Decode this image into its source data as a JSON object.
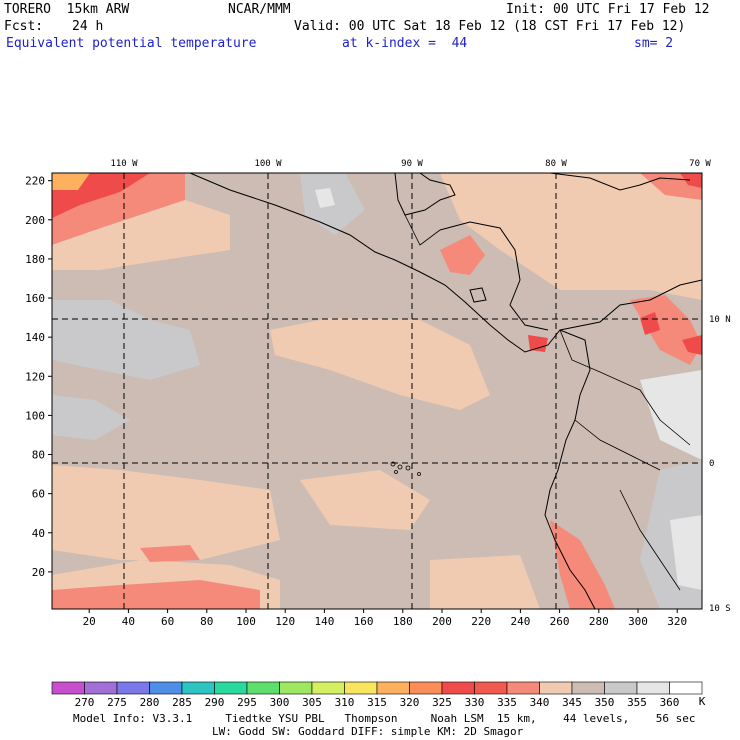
{
  "header": {
    "model": "TORERO  15km ARW",
    "center": "NCAR/MMM",
    "init": "Init: 00 UTC Fri 17 Feb 12",
    "fcst_label": "Fcst:",
    "fcst_value": "24 h",
    "valid": "Valid: 00 UTC Sat 18 Feb 12 (18 CST Fri 17 Feb 12)",
    "field": "Equivalent potential temperature",
    "level": "at k-index =  44",
    "smoothing": "sm= 2"
  },
  "map": {
    "x_ticks": [
      "20",
      "40",
      "60",
      "80",
      "100",
      "120",
      "140",
      "160",
      "180",
      "200",
      "220",
      "240",
      "260",
      "280",
      "300",
      "320"
    ],
    "y_ticks": [
      "20",
      "40",
      "60",
      "80",
      "100",
      "120",
      "140",
      "160",
      "180",
      "200",
      "220"
    ],
    "lon_labels": [
      "110 W",
      "100 W",
      "90 W",
      "80 W",
      "70 W"
    ],
    "lat_labels": [
      "10 N",
      "0",
      "10 S"
    ],
    "colors": {
      "c330": "#f04b4b",
      "c335": "#f58a7a",
      "c340": "#f0cbb2",
      "c345": "#ccbcb4",
      "c350": "#c9c9cc",
      "c355": "#e6e6e6",
      "c325": "#fb8d59",
      "c320": "#fdb15f"
    }
  },
  "colorbar": {
    "labels": [
      "270",
      "275",
      "280",
      "285",
      "290",
      "295",
      "300",
      "305",
      "310",
      "315",
      "320",
      "325",
      "330",
      "335",
      "340",
      "345",
      "350",
      "355",
      "360"
    ],
    "unit": "K",
    "colors": [
      "#c84fcb",
      "#a16fd6",
      "#7b78e9",
      "#4f8ee7",
      "#2ec4c1",
      "#2bd99e",
      "#5ede6c",
      "#9de860",
      "#d5ef63",
      "#f7e55e",
      "#fdb15f",
      "#fb8d59",
      "#f04b4b",
      "#f05a50",
      "#f58a7a",
      "#f0cbb2",
      "#ccbcb4",
      "#c9c9cc",
      "#e6e6e6",
      "#ffffff"
    ]
  },
  "footer": {
    "line1": "Model Info: V3.3.1     Tiedtke YSU PBL   Thompson     Noah LSM  15 km,    44 levels,    56 sec",
    "line2": "LW: Godd SW: Goddard DIFF: simple KM: 2D Smagor"
  }
}
